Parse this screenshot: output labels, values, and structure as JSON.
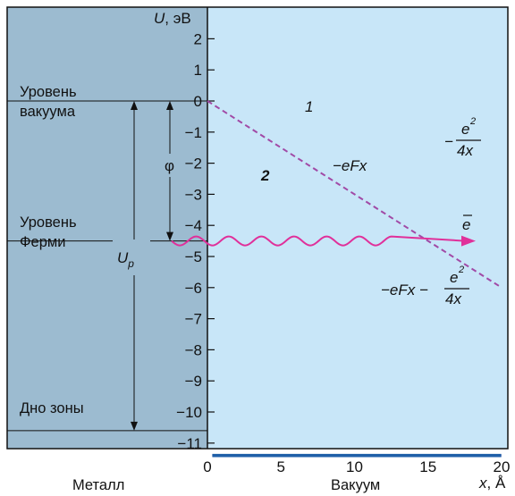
{
  "colors": {
    "metal_fill": "#9cbbd0",
    "vacuum_fill": "#c8e6f8",
    "curve_image": "#a14aa6",
    "curve_total": "#1f5fa8",
    "curve_field": "#a14aa6",
    "electron_wave": "#e0309a",
    "axis": "#111111"
  },
  "axes": {
    "y_title_var": "U",
    "y_title_unit": ", эВ",
    "x_title_var": "x",
    "x_title_unit": ", Å",
    "x_ticks": [
      "0",
      "5",
      "10",
      "15",
      "20"
    ],
    "y_ticks": [
      "2",
      "1",
      "0",
      "−1",
      "−2",
      "−3",
      "−4",
      "−5",
      "−6",
      "−7",
      "−8",
      "−9",
      "−10",
      "−11"
    ],
    "x_range": [
      -7,
      20
    ],
    "y_range": [
      -11.7,
      2.9
    ]
  },
  "levels": {
    "vacuum": {
      "line1": "Уровень",
      "line2": "вакуума",
      "value": 0
    },
    "fermi": {
      "line1": "Уровень",
      "line2": "Ферми",
      "value": -4.5
    },
    "band_bottom": {
      "label": "Дно зоны",
      "value": -10.6
    }
  },
  "region_labels": {
    "metal": "Металл",
    "vacuum": "Вакуум"
  },
  "arrows": {
    "work_function": {
      "label": "φ",
      "from": 0,
      "to": -4.5
    },
    "potential_depth": {
      "label_main": "U",
      "label_sub": "p",
      "from": 0,
      "to": -10.6
    }
  },
  "curves": {
    "image_label": "1",
    "total_label": "2",
    "image_formula_prefix": "−",
    "image_formula_num": "e",
    "image_formula_exp": "2",
    "image_formula_den": "4x",
    "field_formula": "−eFx",
    "total_formula_prefix": "−eFx −",
    "total_formula_num": "e",
    "total_formula_exp": "2",
    "total_formula_den": "4x",
    "electron_label": "e",
    "field_slope_ev_per_angstrom": 0.3
  }
}
